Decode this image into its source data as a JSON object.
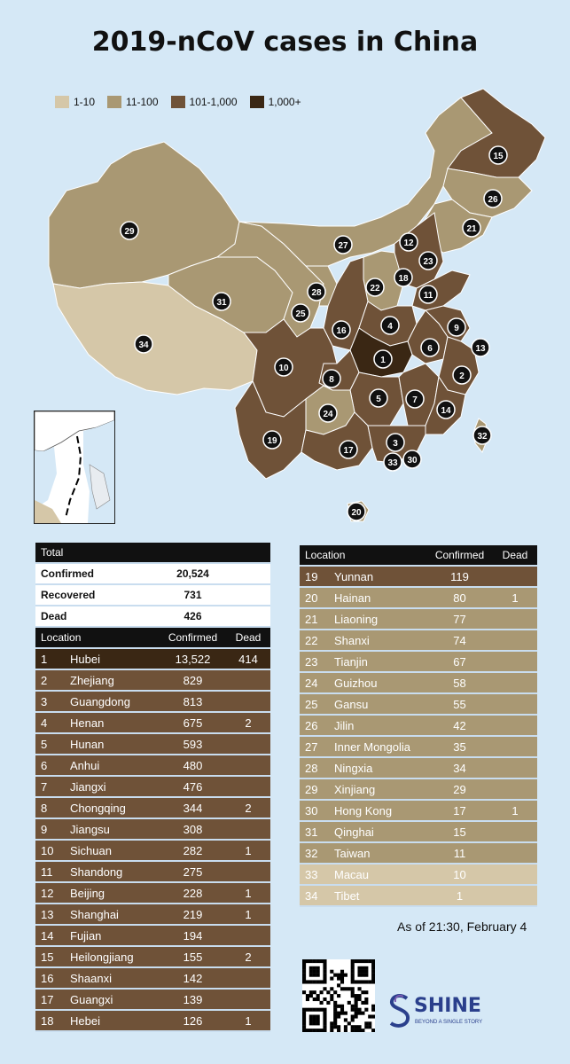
{
  "title": "2019-nCoV cases in China",
  "legend": [
    {
      "label": "1-10",
      "color": "#d5c7a8"
    },
    {
      "label": "11-100",
      "color": "#a99873"
    },
    {
      "label": "101-1,000",
      "color": "#6f5238"
    },
    {
      "label": "1,000+",
      "color": "#3a2714"
    }
  ],
  "totals": {
    "header": "Total",
    "rows": [
      {
        "label": "Confirmed",
        "value": "20,524"
      },
      {
        "label": "Recovered",
        "value": "731"
      },
      {
        "label": "Dead",
        "value": "426"
      }
    ]
  },
  "table_headers": {
    "location": "Location",
    "confirmed": "Confirmed",
    "dead": "Dead"
  },
  "as_of": "As of 21:30, February 4",
  "brand": {
    "name": "SHINE",
    "tagline": "BEYOND A SINGLE STORY"
  },
  "chart_data": {
    "type": "table",
    "title": "2019-nCoV cases in China",
    "columns": [
      "Location",
      "Confirmed",
      "Dead"
    ],
    "rows": [
      {
        "rank": "1",
        "location": "Hubei",
        "confirmed": "13,522",
        "dead": "414",
        "tier": 3
      },
      {
        "rank": "2",
        "location": "Zhejiang",
        "confirmed": "829",
        "dead": "",
        "tier": 2
      },
      {
        "rank": "3",
        "location": "Guangdong",
        "confirmed": "813",
        "dead": "",
        "tier": 2
      },
      {
        "rank": "4",
        "location": "Henan",
        "confirmed": "675",
        "dead": "2",
        "tier": 2
      },
      {
        "rank": "5",
        "location": "Hunan",
        "confirmed": "593",
        "dead": "",
        "tier": 2
      },
      {
        "rank": "6",
        "location": "Anhui",
        "confirmed": "480",
        "dead": "",
        "tier": 2
      },
      {
        "rank": "7",
        "location": "Jiangxi",
        "confirmed": "476",
        "dead": "",
        "tier": 2
      },
      {
        "rank": "8",
        "location": "Chongqing",
        "confirmed": "344",
        "dead": "2",
        "tier": 2
      },
      {
        "rank": "9",
        "location": "Jiangsu",
        "confirmed": "308",
        "dead": "",
        "tier": 2
      },
      {
        "rank": "10",
        "location": "Sichuan",
        "confirmed": "282",
        "dead": "1",
        "tier": 2
      },
      {
        "rank": "11",
        "location": "Shandong",
        "confirmed": "275",
        "dead": "",
        "tier": 2
      },
      {
        "rank": "12",
        "location": "Beijing",
        "confirmed": "228",
        "dead": "1",
        "tier": 2
      },
      {
        "rank": "13",
        "location": "Shanghai",
        "confirmed": "219",
        "dead": "1",
        "tier": 2
      },
      {
        "rank": "14",
        "location": "Fujian",
        "confirmed": "194",
        "dead": "",
        "tier": 2
      },
      {
        "rank": "15",
        "location": "Heilongjiang",
        "confirmed": "155",
        "dead": "2",
        "tier": 2
      },
      {
        "rank": "16",
        "location": "Shaanxi",
        "confirmed": "142",
        "dead": "",
        "tier": 2
      },
      {
        "rank": "17",
        "location": "Guangxi",
        "confirmed": "139",
        "dead": "",
        "tier": 2
      },
      {
        "rank": "18",
        "location": "Hebei",
        "confirmed": "126",
        "dead": "1",
        "tier": 2
      },
      {
        "rank": "19",
        "location": "Yunnan",
        "confirmed": "119",
        "dead": "",
        "tier": 2
      },
      {
        "rank": "20",
        "location": "Hainan",
        "confirmed": "80",
        "dead": "1",
        "tier": 1
      },
      {
        "rank": "21",
        "location": "Liaoning",
        "confirmed": "77",
        "dead": "",
        "tier": 1
      },
      {
        "rank": "22",
        "location": "Shanxi",
        "confirmed": "74",
        "dead": "",
        "tier": 1
      },
      {
        "rank": "23",
        "location": "Tianjin",
        "confirmed": "67",
        "dead": "",
        "tier": 1
      },
      {
        "rank": "24",
        "location": "Guizhou",
        "confirmed": "58",
        "dead": "",
        "tier": 1
      },
      {
        "rank": "25",
        "location": "Gansu",
        "confirmed": "55",
        "dead": "",
        "tier": 1
      },
      {
        "rank": "26",
        "location": "Jilin",
        "confirmed": "42",
        "dead": "",
        "tier": 1
      },
      {
        "rank": "27",
        "location": "Inner Mongolia",
        "confirmed": "35",
        "dead": "",
        "tier": 1
      },
      {
        "rank": "28",
        "location": "Ningxia",
        "confirmed": "34",
        "dead": "",
        "tier": 1
      },
      {
        "rank": "29",
        "location": "Xinjiang",
        "confirmed": "29",
        "dead": "",
        "tier": 1
      },
      {
        "rank": "30",
        "location": "Hong Kong",
        "confirmed": "17",
        "dead": "1",
        "tier": 1
      },
      {
        "rank": "31",
        "location": "Qinghai",
        "confirmed": "15",
        "dead": "",
        "tier": 1
      },
      {
        "rank": "32",
        "location": "Taiwan",
        "confirmed": "11",
        "dead": "",
        "tier": 1
      },
      {
        "rank": "33",
        "location": "Macau",
        "confirmed": "10",
        "dead": "",
        "tier": 0
      },
      {
        "rank": "34",
        "location": "Tibet",
        "confirmed": "1",
        "dead": "",
        "tier": 0
      }
    ]
  }
}
